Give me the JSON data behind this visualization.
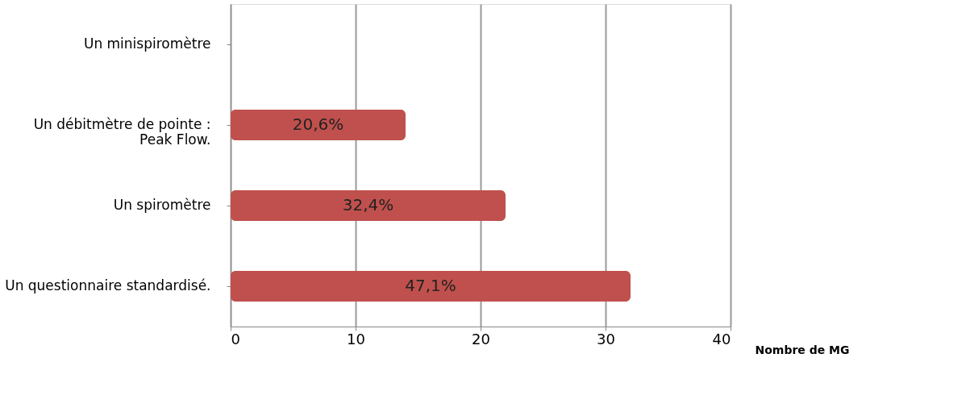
{
  "chart_data": {
    "type": "bar",
    "orientation": "horizontal",
    "xlabel": "Nombre de MG",
    "categories": [
      "Un minispiromètre",
      "Un débitmètre de pointe : Peak Flow.",
      "Un spiromètre",
      "Un questionnaire standardisé."
    ],
    "values": [
      0,
      14,
      22,
      32
    ],
    "annotations": [
      "20,6%",
      "32,4%",
      "47,1%"
    ],
    "color": "#c0504d",
    "xlim": [
      0,
      40
    ],
    "xticks": [
      0,
      10,
      20,
      30,
      40
    ],
    "grid": "x"
  }
}
